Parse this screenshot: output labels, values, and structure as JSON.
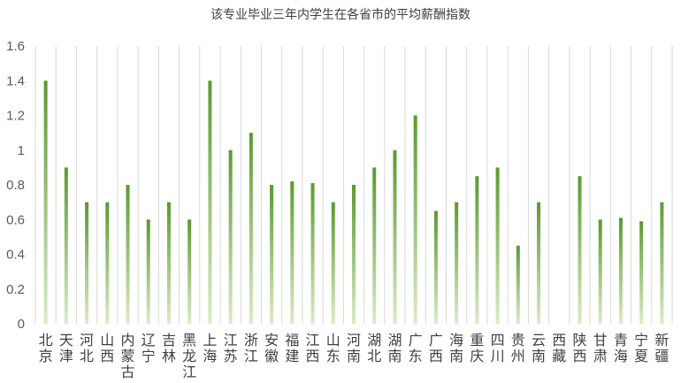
{
  "chart_data": {
    "type": "bar",
    "title": "该专业毕业三年内学生在各省市的平均薪酬指数",
    "xlabel": "",
    "ylabel": "",
    "ylim": [
      0,
      1.6
    ],
    "yticks": [
      "0",
      "0.2",
      "0.4",
      "0.6",
      "0.8",
      "1",
      "1.2",
      "1.4",
      "1.6"
    ],
    "grid": "vertical category lines",
    "legend": "none",
    "categories": [
      "北京",
      "天津",
      "河北",
      "山西",
      "内蒙古",
      "辽宁",
      "吉林",
      "黑龙江",
      "上海",
      "江苏",
      "浙江",
      "安徽",
      "福建",
      "江西",
      "山东",
      "河南",
      "湖北",
      "湖南",
      "广东",
      "广西",
      "海南",
      "重庆",
      "四川",
      "贵州",
      "云南",
      "西藏",
      "陕西",
      "甘肃",
      "青海",
      "宁夏",
      "新疆"
    ],
    "values": [
      1.4,
      0.9,
      0.7,
      0.7,
      0.8,
      0.6,
      0.7,
      0.6,
      1.4,
      1.0,
      1.1,
      0.8,
      0.82,
      0.81,
      0.7,
      0.8,
      0.9,
      1.0,
      1.2,
      0.65,
      0.7,
      0.85,
      0.9,
      0.45,
      0.7,
      null,
      0.85,
      0.6,
      0.61,
      0.59,
      0.7
    ],
    "colors": {
      "bar_top": "#5a9a2e",
      "bar_bottom": "#dcebc9",
      "grid": "#d9d9d9"
    }
  }
}
